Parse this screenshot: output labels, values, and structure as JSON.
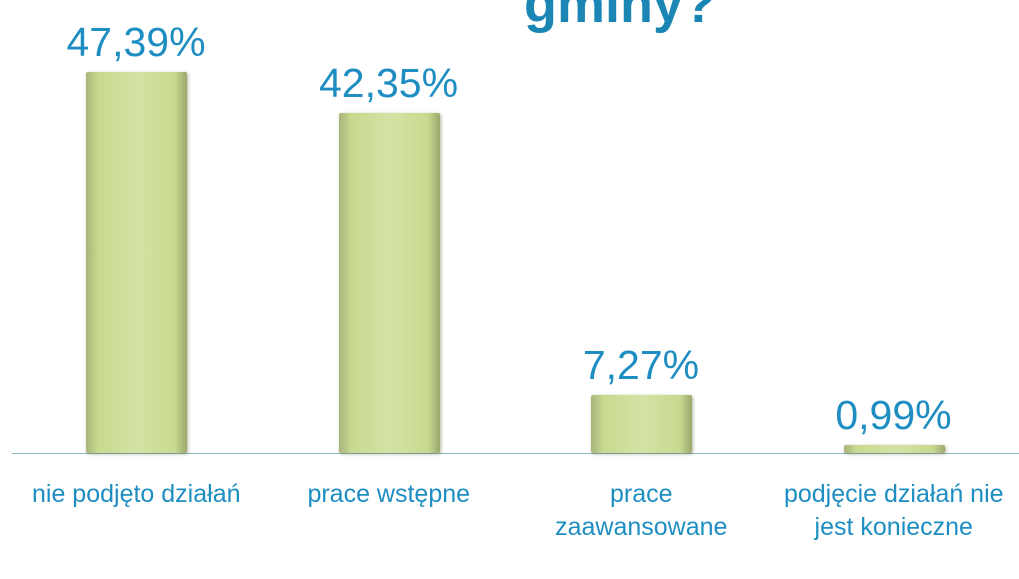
{
  "chart_data": {
    "type": "bar",
    "title": "gminy?",
    "categories": [
      "nie podjęto działań",
      "prace wstępne",
      "prace zaawansowane",
      "podjęcie działań nie jest konieczne"
    ],
    "values": [
      47.39,
      42.35,
      7.27,
      0.99
    ],
    "value_labels": [
      "47,39%",
      "42,35%",
      "7,27%",
      "0,99%"
    ],
    "color": "#c8d98f"
  }
}
